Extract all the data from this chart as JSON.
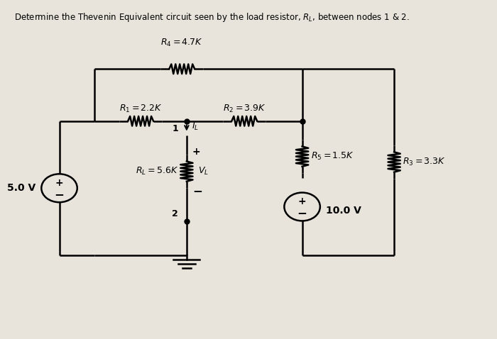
{
  "title": "Determine the Thevenin Equivalent circuit seen by the load resistor, $R_L$, between nodes 1 & 2.",
  "bg_color": "#e8e4dc",
  "line_color": "black",
  "line_width": 1.8,
  "R1_label": "$R_1 = 2.2K$",
  "R2_label": "$R_2 = 3.9K$",
  "R3_label": "$R_3 = 3.3K$",
  "R4_label": "$R_4 = 4.7K$",
  "R5_label": "$R_5 = 1.5K$",
  "RL_label": "$R_L = 5.6K$",
  "VL_label": "$V_L$",
  "IL_label": "$I_L$",
  "V1_label": "5.0 V",
  "V2_label": "10.0 V",
  "node1_label": "1",
  "node2_label": "2"
}
